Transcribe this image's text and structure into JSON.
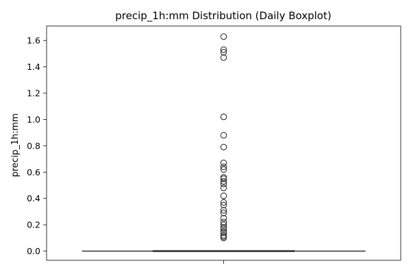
{
  "chart_data": {
    "type": "box",
    "title": "precip_1h:mm Distribution (Daily Boxplot)",
    "xlabel": "",
    "ylabel": "precip_1h:mm",
    "ylim": [
      -0.07,
      1.71
    ],
    "yticks": [
      0.0,
      0.2,
      0.4,
      0.6,
      0.8,
      1.0,
      1.2,
      1.4,
      1.6
    ],
    "ytick_labels": [
      "0.0",
      "0.2",
      "0.4",
      "0.6",
      "0.8",
      "1.0",
      "1.2",
      "1.4",
      "1.6"
    ],
    "grid": false,
    "box": {
      "q1": 0.0,
      "median": 0.0,
      "q3": 0.0,
      "whisker_low": 0.0,
      "whisker_high": 0.0
    },
    "outliers": [
      1.63,
      1.53,
      1.51,
      1.47,
      1.02,
      0.88,
      0.79,
      0.67,
      0.64,
      0.62,
      0.56,
      0.55,
      0.53,
      0.51,
      0.48,
      0.42,
      0.37,
      0.35,
      0.31,
      0.29,
      0.25,
      0.22,
      0.2,
      0.18,
      0.17,
      0.15,
      0.14,
      0.12,
      0.11,
      0.1
    ],
    "colors": {
      "box_edge": "#3d3d3d",
      "outlier_edge": "#3d3d3d",
      "axes": "#000000"
    }
  }
}
